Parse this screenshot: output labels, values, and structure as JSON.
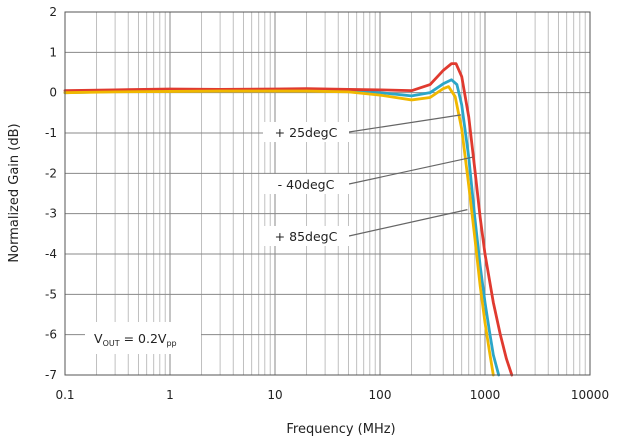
{
  "chart_data": {
    "type": "line",
    "xscale": "log",
    "xlim": [
      0.1,
      10000
    ],
    "ylim": [
      -7,
      2
    ],
    "xticks": [
      "0.1",
      "1",
      "10",
      "100",
      "1000",
      "10000"
    ],
    "yticks": [
      "2",
      "1",
      "0",
      "-1",
      "-2",
      "-3",
      "-4",
      "-5",
      "-6",
      "-7"
    ],
    "xlabel": "Frequency (MHz)",
    "ylabel": "Normalized Gain (dB)",
    "grid": true,
    "series": [
      {
        "name": "+ 25degC",
        "color": "#2ba6c8",
        "x": [
          0.1,
          0.3,
          1,
          3,
          10,
          20,
          50,
          100,
          200,
          300,
          400,
          480,
          540,
          600,
          700,
          800,
          900,
          1000,
          1100,
          1200,
          1350
        ],
        "y": [
          0,
          0.03,
          0.05,
          0.05,
          0.06,
          0.06,
          0.04,
          0.0,
          -0.08,
          0.0,
          0.22,
          0.32,
          0.2,
          -0.3,
          -1.6,
          -3.1,
          -4.3,
          -5.2,
          -5.9,
          -6.5,
          -7.0
        ]
      },
      {
        "name": "- 40degC",
        "color": "#e03a2f",
        "x": [
          0.1,
          0.3,
          1,
          3,
          10,
          20,
          50,
          100,
          200,
          300,
          400,
          480,
          530,
          600,
          700,
          800,
          900,
          1000,
          1200,
          1400,
          1600,
          1800
        ],
        "y": [
          0.05,
          0.07,
          0.09,
          0.08,
          0.09,
          0.1,
          0.08,
          0.07,
          0.05,
          0.2,
          0.55,
          0.72,
          0.72,
          0.4,
          -0.6,
          -1.9,
          -3.1,
          -4.0,
          -5.2,
          -6.0,
          -6.6,
          -7.0
        ]
      },
      {
        "name": "+ 85degC",
        "color": "#f0b800",
        "x": [
          0.1,
          0.3,
          1,
          3,
          10,
          20,
          50,
          100,
          200,
          300,
          400,
          450,
          520,
          600,
          700,
          800,
          900,
          1000,
          1100,
          1200
        ],
        "y": [
          0,
          0.02,
          0.03,
          0.04,
          0.04,
          0.04,
          0.02,
          -0.06,
          -0.18,
          -0.12,
          0.1,
          0.15,
          -0.1,
          -0.9,
          -2.3,
          -3.6,
          -4.8,
          -5.7,
          -6.4,
          -7.0
        ]
      }
    ],
    "annotations": [
      {
        "label": "+ 25degC",
        "series": 0,
        "point": [
          590,
          -0.55
        ]
      },
      {
        "label": "- 40degC",
        "series": 1,
        "point": [
          760,
          -1.6
        ]
      },
      {
        "label": "+ 85degC",
        "series": 2,
        "point": [
          680,
          -2.9
        ]
      }
    ],
    "note": {
      "main": "V",
      "sub1": "OUT",
      "mid": " = 0.2V",
      "sub2": "pp"
    }
  }
}
